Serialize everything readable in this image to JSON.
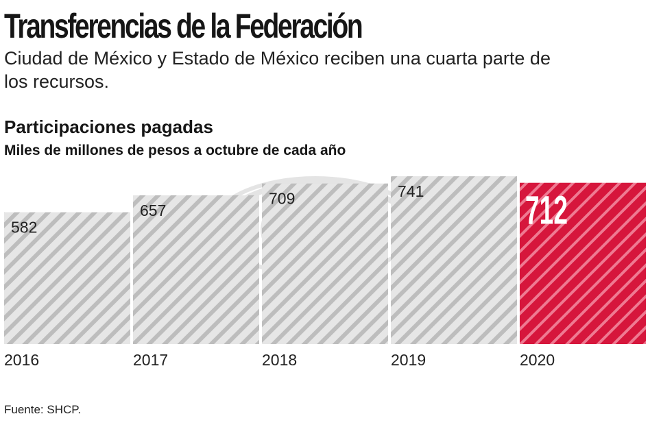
{
  "header": {
    "title": "Transferencias de la Federación",
    "subtitle": "Ciudad de México y Estado de México reciben una cuarta parte de los recursos."
  },
  "chart_data": {
    "type": "bar",
    "title": "Participaciones pagadas",
    "unit_label": "Miles de millones de pesos a octubre de cada año",
    "categories": [
      "2016",
      "2017",
      "2018",
      "2019",
      "2020"
    ],
    "values": [
      582,
      657,
      709,
      741,
      712
    ],
    "highlight_index": 4,
    "xlabel": "",
    "ylabel": "",
    "grid": false,
    "legend": "none",
    "colors": {
      "bar_base": "#e6e6e6",
      "bar_stripe": "#bdbdbd",
      "highlight_base": "#d6163c",
      "highlight_stripe": "#ef7a92",
      "text": "#222222",
      "highlight_text": "#ffffff"
    }
  },
  "footer": {
    "source": "Fuente: SHCP."
  }
}
